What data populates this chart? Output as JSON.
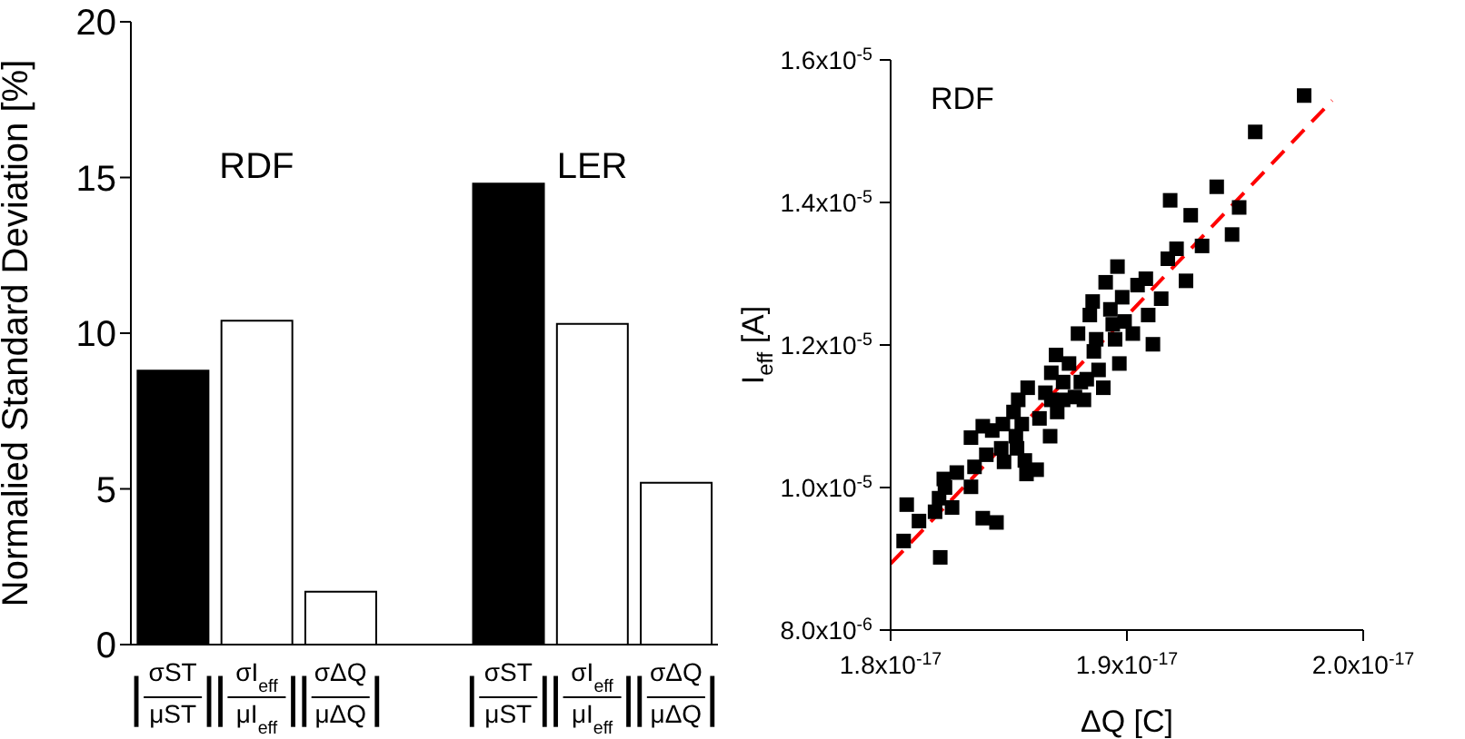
{
  "chart_data": [
    {
      "type": "bar",
      "ylabel": "Normalied Standard Deviation [%]",
      "categories": [
        "|σST/μST|",
        "|σI$_{eff}$/μI$_{eff}$|",
        "|σΔQ/μΔQ|",
        null,
        "|σST/μST|",
        "|σI$_{eff}$/μI$_{eff}$|",
        "|σΔQ/μΔQ|"
      ],
      "values": [
        8.8,
        10.4,
        1.7,
        null,
        14.8,
        10.3,
        5.2
      ],
      "colors": [
        "#000000",
        "#ffffff",
        "#ffffff",
        null,
        "#000000",
        "#ffffff",
        "#ffffff"
      ],
      "ylim": [
        0,
        20
      ],
      "yticks": [
        0,
        5,
        10,
        15,
        20
      ],
      "annotations": [
        "RDF",
        "LER"
      ]
    },
    {
      "type": "scatter",
      "xlabel": "ΔQ [C]",
      "ylabel": "I$_{eff}$ [A]",
      "annotations": [
        "RDF"
      ],
      "xlim": [
        1.8e-17,
        2e-17
      ],
      "xticks": [
        {
          "value": 1.8e-17,
          "label": "1.8x10$^{-17}$"
        },
        {
          "value": 1.9e-17,
          "label": "1.9x10$^{-17}$"
        },
        {
          "value": 2e-17,
          "label": "2.0x10$^{-17}$"
        }
      ],
      "ylim": [
        8e-06,
        1.6e-05
      ],
      "yticks": [
        {
          "value": 8e-06,
          "label": "8.0x10$^{-6}$"
        },
        {
          "value": 1e-05,
          "label": "1.0x10$^{-5}$"
        },
        {
          "value": 1.2e-05,
          "label": "1.2x10$^{-5}$"
        },
        {
          "value": 1.4e-05,
          "label": "1.4x10$^{-5}$"
        },
        {
          "value": 1.6e-05,
          "label": "1.6x10$^{-5}$"
        }
      ],
      "series": [
        {
          "type": "scatter",
          "marker": "square",
          "color": "#000000",
          "x": [
            1.8055e-17,
            1.8068e-17,
            1.812e-17,
            1.821e-17,
            1.8188e-17,
            1.8205e-17,
            1.8225e-17,
            1.826e-17,
            1.823e-17,
            1.834e-17,
            1.834e-17,
            1.8355e-17,
            1.839e-17,
            1.839e-17,
            1.8448e-17,
            1.8405e-17,
            1.843e-17,
            1.848e-17,
            1.8475e-17,
            1.852e-17,
            1.854e-17,
            1.8555e-17,
            1.8535e-17,
            1.8568e-17,
            1.8575e-17,
            1.8618e-17,
            1.863e-17,
            1.8675e-17,
            1.8655e-17,
            1.87e-17,
            1.868e-17,
            1.8705e-17,
            1.873e-17,
            1.8755e-17,
            1.878e-17,
            1.8793e-17,
            1.8818e-17,
            1.883e-17,
            1.8843e-17,
            1.8855e-17,
            1.886e-17,
            1.888e-17,
            1.89e-17,
            1.891e-17,
            1.893e-17,
            1.895e-17,
            1.896e-17,
            1.8968e-17,
            1.898e-17,
            1.899e-17,
            1.9025e-17,
            1.9045e-17,
            1.908e-17,
            1.909e-17,
            1.911e-17,
            1.9145e-17,
            1.9173e-17,
            1.9183e-17,
            1.921e-17,
            1.925e-17,
            1.927e-17,
            1.9318e-17,
            1.938e-17,
            1.9445e-17,
            1.9475e-17,
            1.9543e-17,
            1.975e-17,
            1.858e-17,
            1.873e-17,
            1.8805e-17,
            1.887e-17,
            1.894e-17,
            1.868e-17,
            1.853e-17,
            1.8468e-17,
            1.828e-17
          ],
          "values": [
            9.25e-06,
            9.76e-06,
            9.53e-06,
            9.02e-06,
            9.66e-06,
            9.85e-06,
            1.012e-05,
            9.72e-06,
            1e-05,
            1.07e-05,
            1.001e-05,
            1.029e-05,
            1.086e-05,
            9.57e-06,
            9.51e-06,
            1.046e-05,
            1.08e-05,
            1.036e-05,
            1.089e-05,
            1.106e-05,
            1.123e-05,
            1.089e-05,
            1.055e-05,
            1.038e-05,
            1.019e-05,
            1.025e-05,
            1.097e-05,
            1.072e-05,
            1.133e-05,
            1.186e-05,
            1.161e-05,
            1.106e-05,
            1.148e-05,
            1.174e-05,
            1.127e-05,
            1.216e-05,
            1.123e-05,
            1.152e-05,
            1.242e-05,
            1.261e-05,
            1.191e-05,
            1.165e-05,
            1.14e-05,
            1.288e-05,
            1.25e-05,
            1.208e-05,
            1.31e-05,
            1.174e-05,
            1.267e-05,
            1.233e-05,
            1.216e-05,
            1.284e-05,
            1.293e-05,
            1.242e-05,
            1.201e-05,
            1.265e-05,
            1.321e-05,
            1.403e-05,
            1.335e-05,
            1.29e-05,
            1.382e-05,
            1.339e-05,
            1.422e-05,
            1.355e-05,
            1.393e-05,
            1.499e-05,
            1.55e-05,
            1.14e-05,
            1.123e-05,
            1.148e-05,
            1.208e-05,
            1.229e-05,
            1.123e-05,
            1.072e-05,
            1.055e-05,
            1.021e-05
          ]
        },
        {
          "type": "line",
          "marker": "none",
          "line_style": "dashed",
          "color": "#ff0000",
          "x": [
            1.8e-17,
            1.9868e-17
          ],
          "values": [
            8.93e-06,
            1.543e-05
          ]
        }
      ]
    }
  ]
}
